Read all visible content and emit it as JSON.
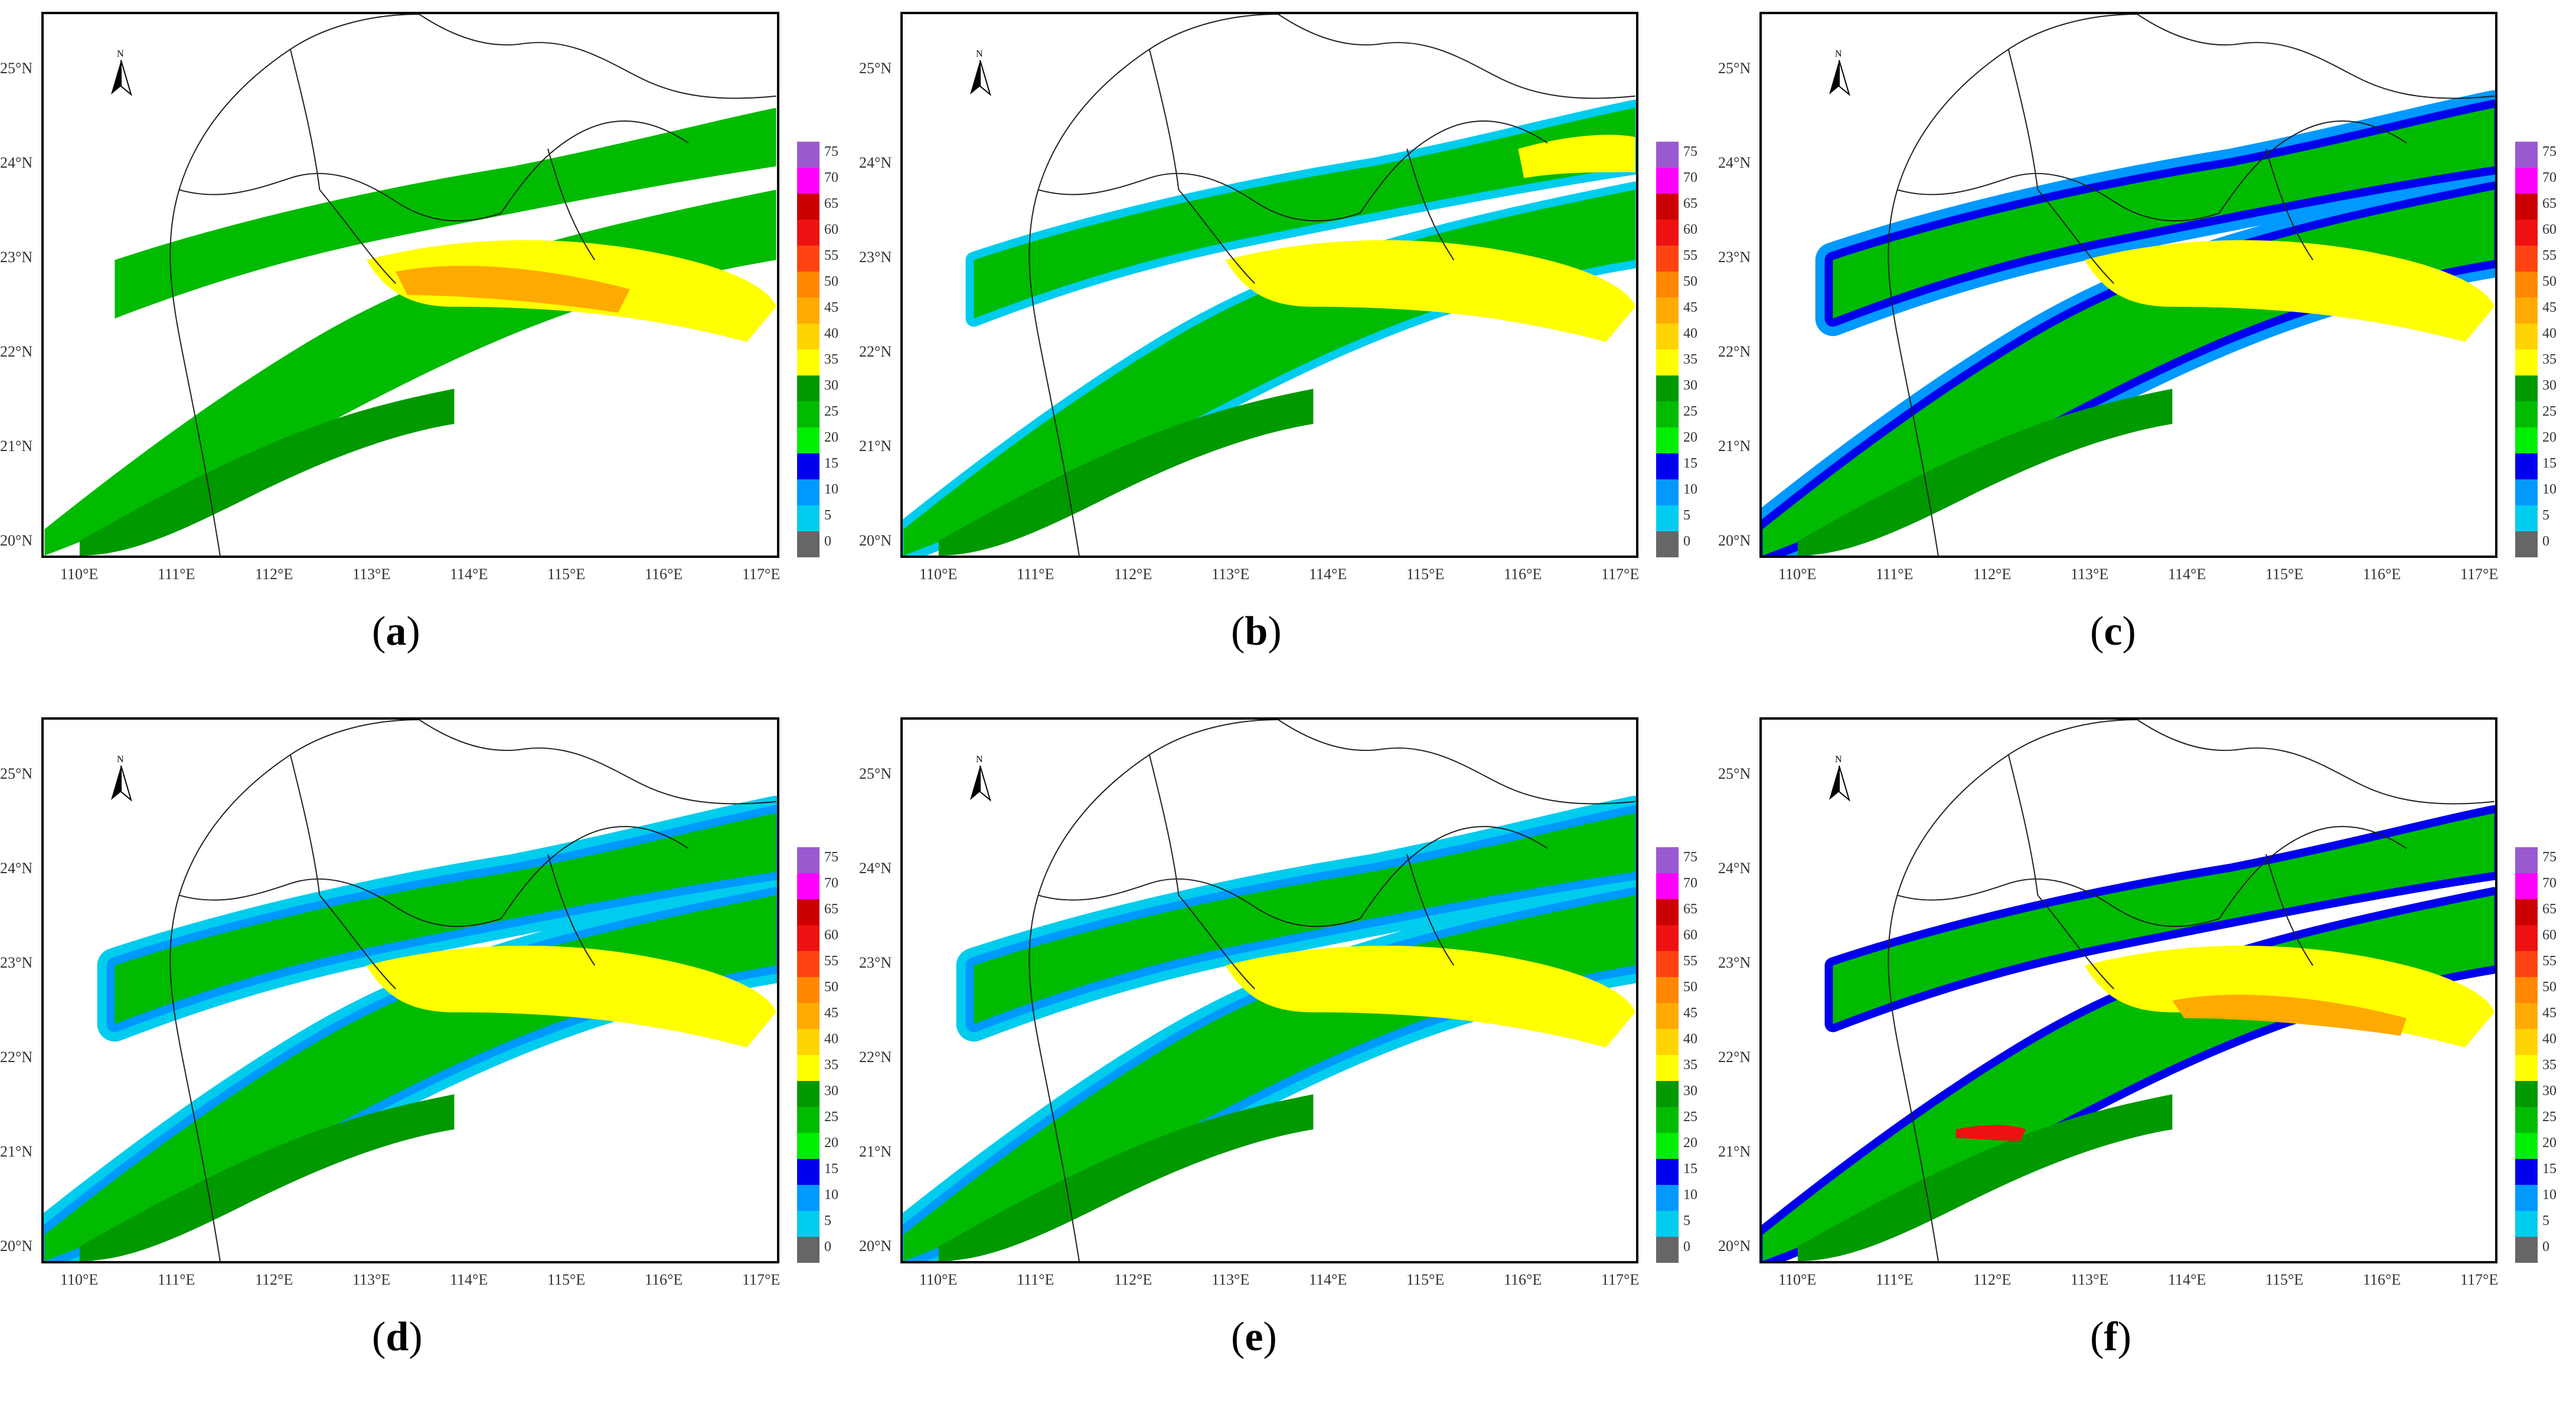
{
  "panels": [
    {
      "id": "a",
      "caption_open": "(",
      "caption_letter": "a",
      "caption_close": ")"
    },
    {
      "id": "b",
      "caption_open": "(",
      "caption_letter": "b",
      "caption_close": ")"
    },
    {
      "id": "c",
      "caption_open": "(",
      "caption_letter": "c",
      "caption_close": ")"
    },
    {
      "id": "d",
      "caption_open": "(",
      "caption_letter": "d",
      "caption_close": ")"
    },
    {
      "id": "e",
      "caption_open": "(",
      "caption_letter": "e",
      "caption_close": ")"
    },
    {
      "id": "f",
      "caption_open": "(",
      "caption_letter": "f",
      "caption_close": ")"
    }
  ],
  "latitudes": [
    "25°N",
    "24°N",
    "23°N",
    "22°N",
    "21°N",
    "20°N"
  ],
  "longitudes": [
    "110°E",
    "111°E",
    "112°E",
    "113°E",
    "114°E",
    "115°E",
    "116°E",
    "117°E"
  ],
  "north_label": "N",
  "colorbar": {
    "labels": [
      "75",
      "70",
      "65",
      "60",
      "55",
      "50",
      "45",
      "40",
      "35",
      "30",
      "25",
      "20",
      "15",
      "10",
      "5",
      "0"
    ],
    "colors": [
      "#9b59d0",
      "#ff00ff",
      "#cc0000",
      "#ee1111",
      "#ff4411",
      "#ff8800",
      "#ffaa00",
      "#ffd400",
      "#ffff00",
      "#009900",
      "#00bb00",
      "#00ee00",
      "#0000ee",
      "#0099ff",
      "#00ccee",
      "#666666"
    ]
  }
}
